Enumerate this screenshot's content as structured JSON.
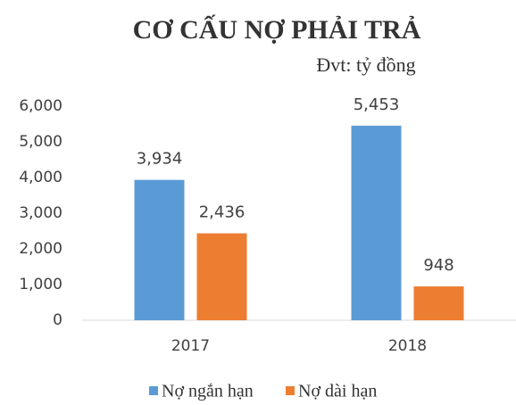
{
  "chart_data": {
    "type": "bar",
    "title": "CƠ CẤU NỢ PHẢI TRẢ",
    "subtitle": "Đvt: tỷ đồng",
    "categories": [
      "2017",
      "2018"
    ],
    "series": [
      {
        "name": "Nợ ngắn hạn",
        "color": "#5b9bd5",
        "values": [
          3934,
          5453
        ],
        "value_labels": [
          "3,934",
          "5,453"
        ]
      },
      {
        "name": "Nợ dài hạn",
        "color": "#ed7d31",
        "values": [
          2436,
          948
        ],
        "value_labels": [
          "2,436",
          "948"
        ]
      }
    ],
    "ylim": [
      0,
      6000
    ],
    "yticks": [
      0,
      {
        "value": 1000,
        "label": "1,000"
      },
      {
        "value": 2000,
        "label": "2,000"
      },
      {
        "value": 3000,
        "label": "3,000"
      },
      {
        "value": 4000,
        "label": "4,000"
      },
      {
        "value": 5000,
        "label": "5,000"
      },
      {
        "value": 6000,
        "label": "6,000"
      }
    ],
    "grid": false,
    "legend": "bottom"
  }
}
